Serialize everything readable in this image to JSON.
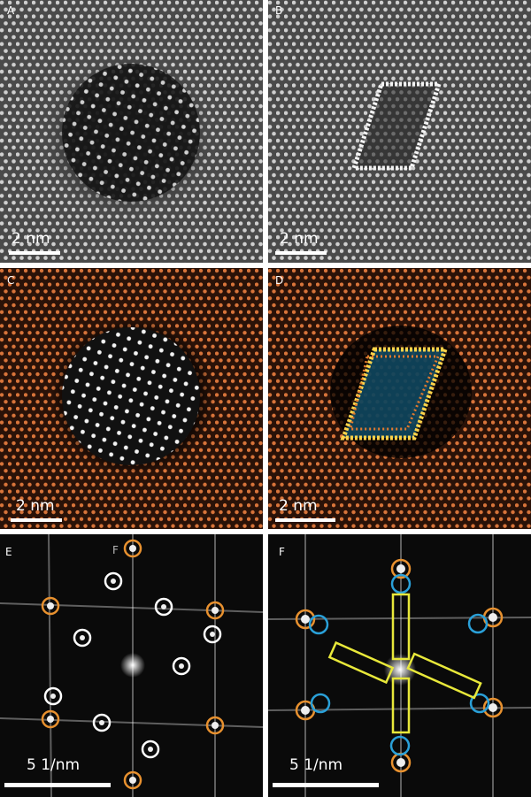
{
  "panels": [
    {
      "label": "A",
      "scale_bar": "2 nm"
    },
    {
      "label": "B",
      "scale_bar": "2 nm"
    },
    {
      "label": "C",
      "scale_bar": "2 nm"
    },
    {
      "label": "D",
      "scale_bar": "2 nm"
    },
    {
      "label": "E",
      "scale_bar": "5 1/nm",
      "extra_label": "F"
    },
    {
      "label": "F",
      "scale_bar": "5 1/nm"
    }
  ]
}
